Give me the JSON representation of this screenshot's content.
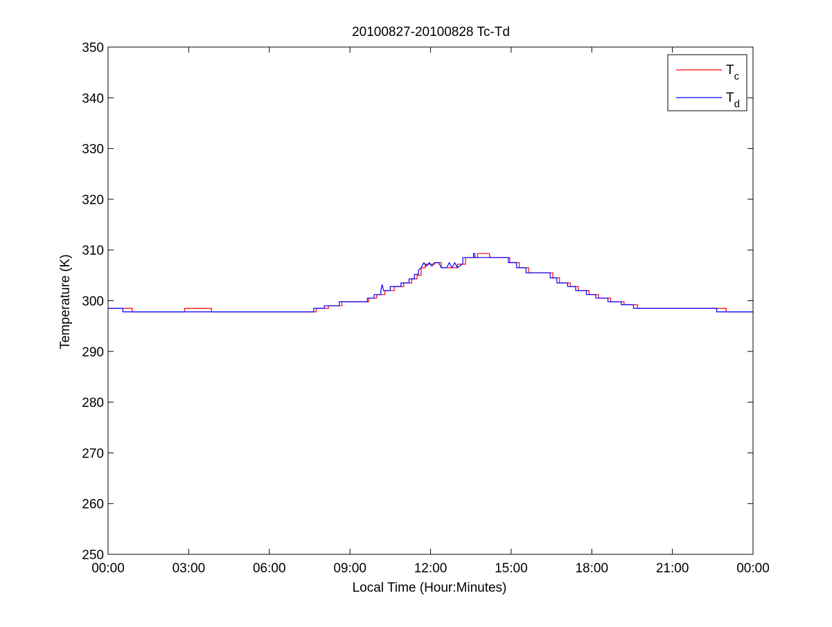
{
  "chart_data": {
    "type": "line",
    "title": "20100827-20100828 Tc-Td",
    "xlabel": "Local Time (Hour:Minutes)",
    "ylabel": "Temperature (K)",
    "xlim": [
      0,
      24
    ],
    "ylim": [
      250,
      350
    ],
    "x_unit": "hours",
    "x_ticks": [
      0,
      3,
      6,
      9,
      12,
      15,
      18,
      21,
      24
    ],
    "x_tick_labels": [
      "00:00",
      "03:00",
      "06:00",
      "09:00",
      "12:00",
      "15:00",
      "18:00",
      "21:00",
      "00:00"
    ],
    "y_ticks": [
      250,
      260,
      270,
      280,
      290,
      300,
      310,
      320,
      330,
      340,
      350
    ],
    "y_tick_labels": [
      "250",
      "260",
      "270",
      "280",
      "290",
      "300",
      "310",
      "320",
      "330",
      "340",
      "350"
    ],
    "grid": false,
    "legend": {
      "position": "top-right",
      "entries": [
        {
          "base": "T",
          "sub": "c",
          "color": "#ff0000"
        },
        {
          "base": "T",
          "sub": "d",
          "color": "#0000ff"
        }
      ]
    },
    "series": [
      {
        "color": "#ff0000",
        "points": [
          [
            0.0,
            298.5
          ],
          [
            0.9,
            298.5
          ],
          [
            0.9,
            297.8
          ],
          [
            2.85,
            297.8
          ],
          [
            2.85,
            298.5
          ],
          [
            3.85,
            298.5
          ],
          [
            3.85,
            297.8
          ],
          [
            7.75,
            297.8
          ],
          [
            7.75,
            298.5
          ],
          [
            8.2,
            298.5
          ],
          [
            8.2,
            299.0
          ],
          [
            8.7,
            299.0
          ],
          [
            8.7,
            299.8
          ],
          [
            9.7,
            299.8
          ],
          [
            9.7,
            300.5
          ],
          [
            10.0,
            300.5
          ],
          [
            10.0,
            301.2
          ],
          [
            10.3,
            301.2
          ],
          [
            10.3,
            302.0
          ],
          [
            10.65,
            302.0
          ],
          [
            10.65,
            302.8
          ],
          [
            11.0,
            302.8
          ],
          [
            11.0,
            303.5
          ],
          [
            11.3,
            303.5
          ],
          [
            11.3,
            304.3
          ],
          [
            11.5,
            304.3
          ],
          [
            11.5,
            305.0
          ],
          [
            11.65,
            305.0
          ],
          [
            11.65,
            306.5
          ],
          [
            11.8,
            306.5
          ],
          [
            11.8,
            307.2
          ],
          [
            12.15,
            307.2
          ],
          [
            12.15,
            307.5
          ],
          [
            12.4,
            307.5
          ],
          [
            12.4,
            306.5
          ],
          [
            13.0,
            306.5
          ],
          [
            13.0,
            307.2
          ],
          [
            13.3,
            307.2
          ],
          [
            13.3,
            308.5
          ],
          [
            13.75,
            308.5
          ],
          [
            13.75,
            309.3
          ],
          [
            14.2,
            309.3
          ],
          [
            14.2,
            308.5
          ],
          [
            14.95,
            308.5
          ],
          [
            14.95,
            307.5
          ],
          [
            15.3,
            307.5
          ],
          [
            15.3,
            306.5
          ],
          [
            15.65,
            306.5
          ],
          [
            15.65,
            305.5
          ],
          [
            16.55,
            305.5
          ],
          [
            16.55,
            304.5
          ],
          [
            16.8,
            304.5
          ],
          [
            16.8,
            303.5
          ],
          [
            17.2,
            303.5
          ],
          [
            17.2,
            302.8
          ],
          [
            17.5,
            302.8
          ],
          [
            17.5,
            302.0
          ],
          [
            17.9,
            302.0
          ],
          [
            17.9,
            301.2
          ],
          [
            18.25,
            301.2
          ],
          [
            18.25,
            300.5
          ],
          [
            18.7,
            300.5
          ],
          [
            18.7,
            299.8
          ],
          [
            19.2,
            299.8
          ],
          [
            19.2,
            299.2
          ],
          [
            19.7,
            299.2
          ],
          [
            19.7,
            298.5
          ],
          [
            23.0,
            298.5
          ],
          [
            23.0,
            297.8
          ],
          [
            24.0,
            297.8
          ]
        ]
      },
      {
        "color": "#0000ff",
        "points": [
          [
            0.0,
            298.5
          ],
          [
            0.55,
            298.5
          ],
          [
            0.55,
            297.8
          ],
          [
            7.65,
            297.8
          ],
          [
            7.65,
            298.5
          ],
          [
            8.05,
            298.5
          ],
          [
            8.05,
            299.0
          ],
          [
            8.6,
            299.0
          ],
          [
            8.6,
            299.8
          ],
          [
            9.65,
            299.8
          ],
          [
            9.65,
            300.5
          ],
          [
            9.9,
            300.5
          ],
          [
            9.9,
            301.2
          ],
          [
            10.15,
            301.2
          ],
          [
            10.15,
            302.0
          ],
          [
            10.2,
            303.2
          ],
          [
            10.25,
            302.0
          ],
          [
            10.5,
            302.0
          ],
          [
            10.5,
            302.8
          ],
          [
            10.9,
            302.8
          ],
          [
            10.9,
            303.5
          ],
          [
            11.2,
            303.5
          ],
          [
            11.2,
            304.3
          ],
          [
            11.4,
            304.3
          ],
          [
            11.4,
            305.2
          ],
          [
            11.55,
            305.2
          ],
          [
            11.55,
            306.0
          ],
          [
            11.65,
            306.5
          ],
          [
            11.75,
            307.5
          ],
          [
            11.85,
            306.8
          ],
          [
            11.95,
            307.5
          ],
          [
            12.05,
            306.8
          ],
          [
            12.15,
            307.5
          ],
          [
            12.3,
            307.5
          ],
          [
            12.4,
            306.5
          ],
          [
            12.6,
            306.5
          ],
          [
            12.7,
            307.5
          ],
          [
            12.8,
            306.5
          ],
          [
            12.9,
            307.5
          ],
          [
            13.0,
            306.5
          ],
          [
            13.2,
            307.3
          ],
          [
            13.2,
            308.5
          ],
          [
            13.6,
            308.5
          ],
          [
            13.6,
            309.3
          ],
          [
            13.65,
            309.3
          ],
          [
            13.65,
            308.5
          ],
          [
            14.9,
            308.5
          ],
          [
            14.9,
            307.5
          ],
          [
            15.2,
            307.5
          ],
          [
            15.2,
            306.5
          ],
          [
            15.55,
            306.5
          ],
          [
            15.55,
            305.5
          ],
          [
            16.45,
            305.5
          ],
          [
            16.45,
            304.5
          ],
          [
            16.7,
            304.5
          ],
          [
            16.7,
            303.5
          ],
          [
            17.1,
            303.5
          ],
          [
            17.1,
            302.8
          ],
          [
            17.4,
            302.8
          ],
          [
            17.4,
            302.0
          ],
          [
            17.8,
            302.0
          ],
          [
            17.8,
            301.2
          ],
          [
            18.15,
            301.2
          ],
          [
            18.15,
            300.5
          ],
          [
            18.6,
            300.5
          ],
          [
            18.6,
            299.8
          ],
          [
            19.1,
            299.8
          ],
          [
            19.1,
            299.2
          ],
          [
            19.55,
            299.2
          ],
          [
            19.55,
            298.5
          ],
          [
            22.65,
            298.5
          ],
          [
            22.65,
            297.8
          ],
          [
            24.0,
            297.8
          ]
        ]
      }
    ]
  }
}
